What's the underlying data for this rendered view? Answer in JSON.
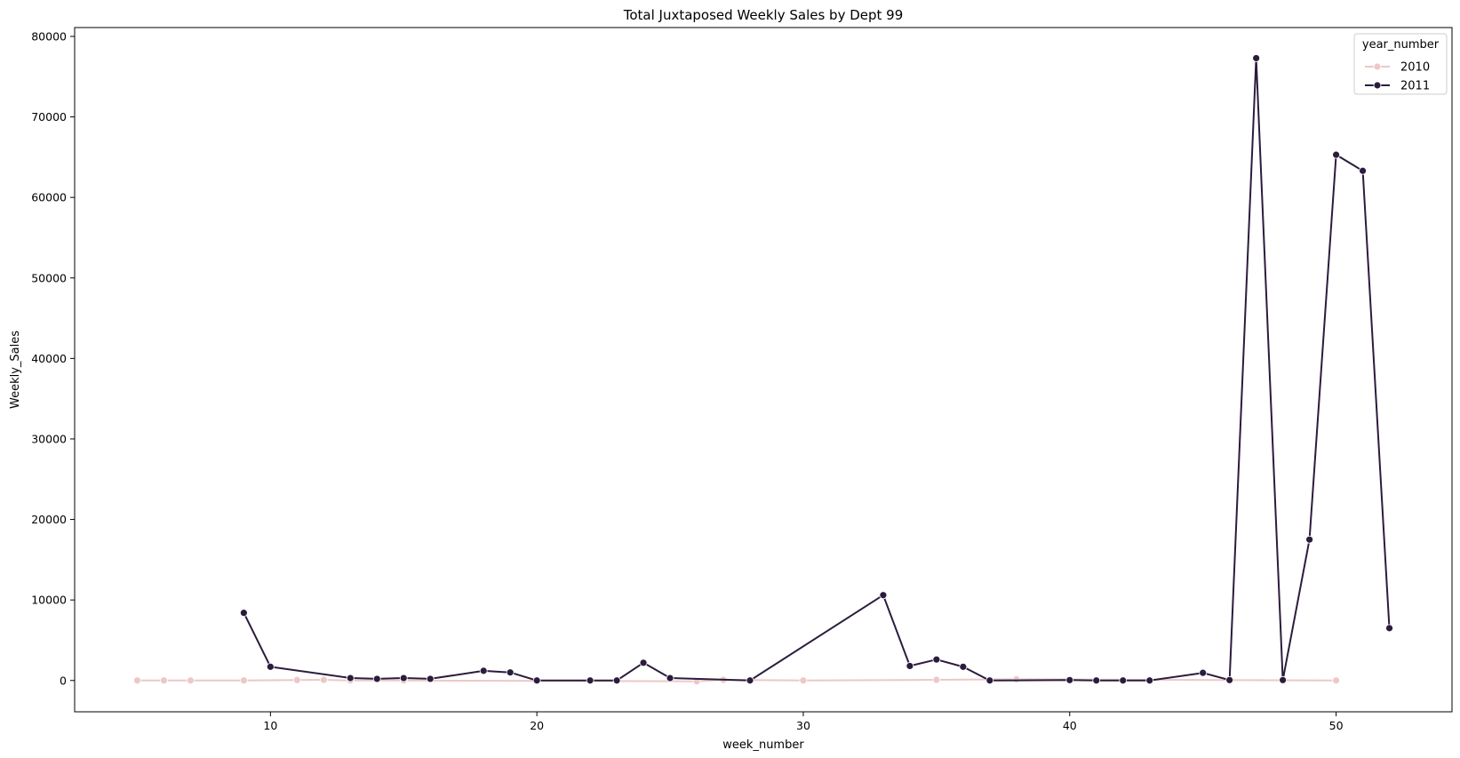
{
  "chart_data": {
    "type": "line",
    "title": "Total Juxtaposed Weekly Sales by Dept 99",
    "xlabel": "week_number",
    "ylabel": "Weekly_Sales",
    "xlim": [
      2.65,
      54.35
    ],
    "ylim": [
      -3890,
      81100
    ],
    "xticks": [
      10,
      20,
      30,
      40,
      50
    ],
    "yticks": [
      0,
      10000,
      20000,
      30000,
      40000,
      50000,
      60000,
      70000,
      80000
    ],
    "grid": false,
    "legend": {
      "title": "year_number",
      "placement": "top-right"
    },
    "series": [
      {
        "name": "2010",
        "color": "#ecc8c6",
        "x": [
          5,
          6,
          7,
          9,
          11,
          12,
          13,
          15,
          26,
          27,
          30,
          35,
          38,
          50
        ],
        "y": [
          0,
          0,
          0,
          0,
          60,
          80,
          0,
          0,
          -100,
          80,
          0,
          80,
          150,
          0
        ]
      },
      {
        "name": "2011",
        "color": "#2b1c3d",
        "x": [
          9,
          10,
          13,
          14,
          15,
          16,
          18,
          19,
          20,
          22,
          23,
          24,
          25,
          28,
          33,
          34,
          35,
          36,
          37,
          40,
          41,
          42,
          43,
          45,
          46,
          47,
          48,
          49,
          50,
          51,
          52
        ],
        "y": [
          8400,
          1700,
          300,
          200,
          300,
          200,
          1200,
          1000,
          0,
          0,
          0,
          2200,
          300,
          0,
          10600,
          1800,
          2600,
          1700,
          0,
          50,
          0,
          0,
          0,
          950,
          50,
          77300,
          50,
          17500,
          65300,
          63300,
          6500
        ]
      }
    ]
  }
}
